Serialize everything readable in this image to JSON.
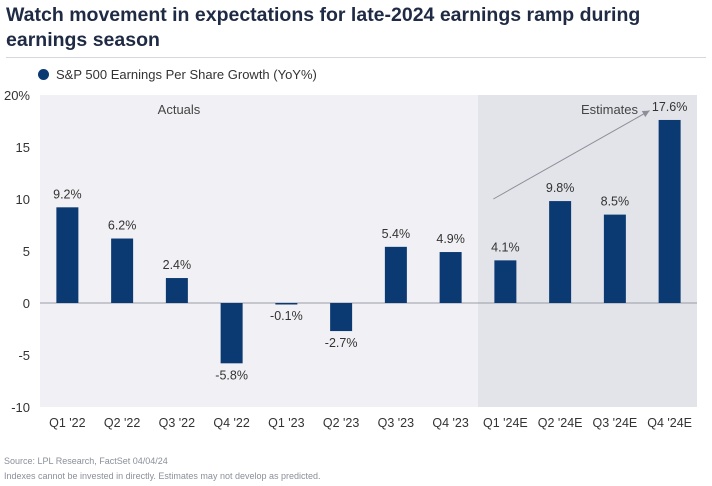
{
  "title": "Watch movement in expectations for late-2024 earnings ramp during earnings season",
  "source": "Source: LPL Research, FactSet 04/04/24",
  "disclaimer": "Indexes cannot be invested in directly. Estimates may not develop as predicted.",
  "colors": {
    "bar": "#0b3a73",
    "actuals_bg": "#f1f1f5",
    "estimates_bg": "#e3e4ea",
    "axis_text": "#333333",
    "arrow": "#8c8f99"
  },
  "chart_data": {
    "type": "bar",
    "categories": [
      "Q1 '22",
      "Q2 '22",
      "Q3 '22",
      "Q4 '22",
      "Q1 '23",
      "Q2 '23",
      "Q3 '23",
      "Q4 '23",
      "Q1 '24E",
      "Q2 '24E",
      "Q3 '24E",
      "Q4 '24E"
    ],
    "series": [
      {
        "name": "S&P 500 Earnings Per Share Growth (YoY%)",
        "values": [
          9.2,
          6.2,
          2.4,
          -5.8,
          -0.1,
          -2.7,
          5.4,
          4.9,
          4.1,
          9.8,
          8.5,
          17.6
        ]
      }
    ],
    "data_labels": [
      "9.2%",
      "6.2%",
      "2.4%",
      "-5.8%",
      "-0.1%",
      "-2.7%",
      "5.4%",
      "4.9%",
      "4.1%",
      "9.8%",
      "8.5%",
      "17.6%"
    ],
    "ylim": [
      -10,
      20
    ],
    "yticks": [
      -10,
      -5,
      0,
      5,
      10,
      15,
      20
    ],
    "ytick_labels": [
      "-10",
      "-5",
      "0",
      "5",
      "10",
      "15",
      "20%"
    ],
    "regions": [
      {
        "label": "Actuals",
        "first": 0,
        "last": 7
      },
      {
        "label": "Estimates",
        "first": 8,
        "last": 11
      }
    ],
    "annotation": "trend arrow from Q1 '24E toward Q4 '24E",
    "legend_position": "top-left",
    "grid": false
  }
}
